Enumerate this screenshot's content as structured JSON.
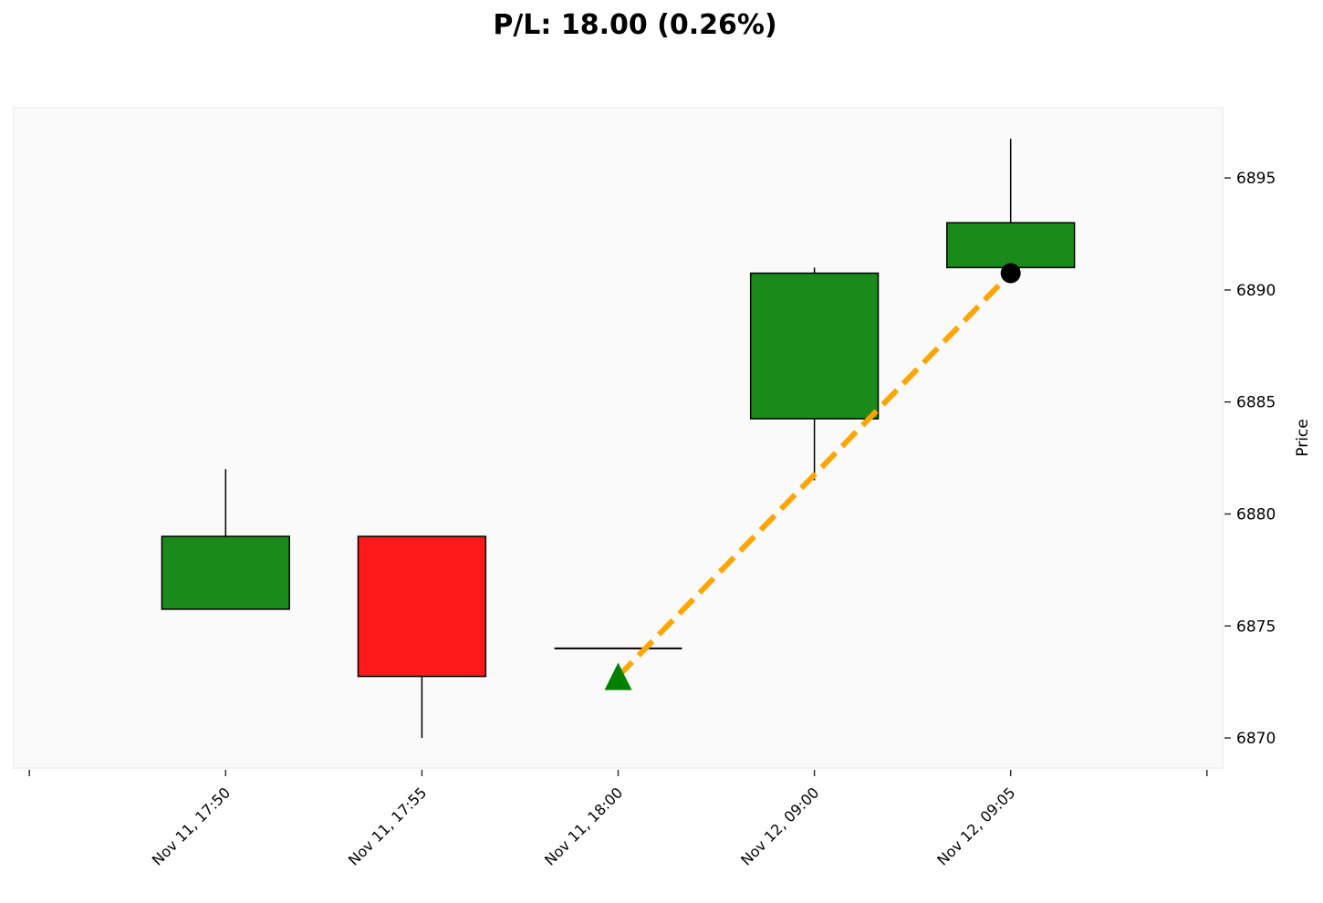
{
  "chart_data": {
    "type": "candlestick",
    "title": "P/L: 18.00 (0.26%)",
    "xlabel": "",
    "ylabel": "Price",
    "categories": [
      "Nov 11, 17:50",
      "Nov 11, 17:55",
      "Nov 11, 18:00",
      "Nov 12, 09:00",
      "Nov 12, 09:05"
    ],
    "candles": [
      {
        "open": 6875.75,
        "high": 6882.0,
        "low": 6875.75,
        "close": 6879.0
      },
      {
        "open": 6879.0,
        "high": 6879.0,
        "low": 6870.0,
        "close": 6872.75
      },
      {
        "open": 6874.0,
        "high": 6874.0,
        "low": 6874.0,
        "close": 6874.0
      },
      {
        "open": 6884.25,
        "high": 6891.0,
        "low": 6881.5,
        "close": 6890.75
      },
      {
        "open": 6891.0,
        "high": 6896.75,
        "low": 6891.0,
        "close": 6893.0
      }
    ],
    "entry": {
      "index": 2,
      "price": 6872.75,
      "marker": "triangle-up",
      "color": "#008000"
    },
    "exit": {
      "index": 4,
      "price": 6890.75,
      "marker": "circle",
      "color": "#000000"
    },
    "trade_line": {
      "color": "#FFA500",
      "style": "dashed"
    },
    "yticks": [
      6870,
      6875,
      6880,
      6885,
      6890,
      6895
    ],
    "ylim": [
      6868.66,
      6898.14
    ],
    "xlim": [
      -1.08,
      5.08
    ],
    "y_axis_side": "right",
    "grid": false,
    "colors": {
      "up": "#1a8a1a",
      "down": "#ff1a1a",
      "background": "#fafafa"
    }
  }
}
